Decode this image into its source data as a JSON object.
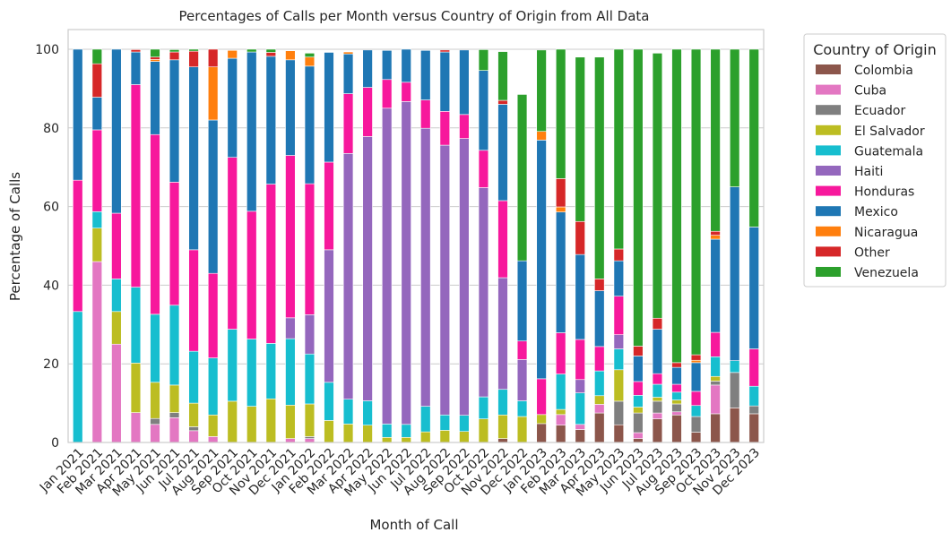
{
  "chart_data": {
    "type": "bar",
    "stacked": true,
    "title": "Percentages of Calls per Month versus Country of Origin from All Data",
    "xlabel": "Month of Call",
    "ylabel": "Percentage of Calls",
    "ylim": [
      0,
      105
    ],
    "yticks": [
      "0",
      "20",
      "40",
      "60",
      "80",
      "100"
    ],
    "grid": true,
    "legend_title": "Country of Origin",
    "legend_position": "outside-right",
    "categories": [
      "Jan 2021",
      "Feb 2021",
      "Mar 2021",
      "Apr 2021",
      "May 2021",
      "Jun 2021",
      "Jul 2021",
      "Aug 2021",
      "Sep 2021",
      "Oct 2021",
      "Nov 2021",
      "Dec 2021",
      "Jan 2022",
      "Feb 2022",
      "Mar 2022",
      "Apr 2022",
      "May 2022",
      "Jun 2022",
      "Jul 2022",
      "Aug 2022",
      "Sep 2022",
      "Oct 2022",
      "Nov 2022",
      "Dec 2022",
      "Jan 2023",
      "Feb 2023",
      "Mar 2023",
      "Apr 2023",
      "May 2023",
      "Jun 2023",
      "Jul 2023",
      "Aug 2023",
      "Sep 2023",
      "Oct 2023",
      "Nov 2023",
      "Dec 2023"
    ],
    "series": [
      {
        "name": "Colombia",
        "color": "#8c564b",
        "values": [
          0,
          0,
          0,
          0,
          0,
          0,
          0,
          0,
          0,
          0,
          0,
          0,
          0,
          0,
          0,
          0,
          0,
          0,
          0,
          0,
          0,
          0,
          1,
          0,
          4.8,
          4.4,
          3.3,
          7.5,
          4.5,
          1.0,
          6.0,
          7.0,
          2.6,
          7.3,
          8.8,
          7.3
        ]
      },
      {
        "name": "Cuba",
        "color": "#e377c2",
        "values": [
          0,
          46,
          25,
          7.6,
          4.6,
          6.3,
          3.0,
          1.5,
          0,
          0,
          0,
          1,
          1,
          0,
          0,
          0,
          0,
          0,
          0,
          0,
          0,
          0,
          0,
          0,
          0,
          2.7,
          1.3,
          2.2,
          0,
          1.5,
          1.5,
          0.8,
          0,
          7.3,
          0,
          0
        ]
      },
      {
        "name": "Ecuador",
        "color": "#7f7f7f",
        "values": [
          0,
          0,
          0,
          0,
          1.5,
          1.3,
          1.0,
          0,
          0,
          0,
          0,
          0,
          0.5,
          0,
          0,
          0,
          0,
          0,
          0,
          0,
          0,
          0,
          0,
          0,
          0,
          0,
          0,
          0,
          6.0,
          5.0,
          3.0,
          2.0,
          4.0,
          1.0,
          9.0,
          2.0
        ]
      },
      {
        "name": "El Salvador",
        "color": "#bcbd22",
        "values": [
          0,
          8.5,
          8.3,
          12.6,
          9.2,
          7.0,
          6.0,
          5.5,
          10.5,
          9.2,
          11.1,
          8.5,
          8.3,
          5.6,
          4.7,
          4.4,
          1.3,
          1.3,
          2.7,
          3.1,
          2.8,
          6,
          6,
          6.6,
          2.3,
          1.3,
          0,
          2.2,
          8.0,
          1.5,
          1.0,
          1.0,
          0,
          1.2,
          0,
          0
        ]
      },
      {
        "name": "Guatemala",
        "color": "#17becf",
        "values": [
          33.3,
          4.2,
          8.3,
          19.3,
          17.3,
          20.3,
          13.2,
          14.5,
          18.3,
          17.1,
          14.1,
          16.9,
          12.7,
          9.7,
          6.3,
          6.2,
          3.4,
          3.3,
          6.5,
          3.9,
          4.1,
          5.6,
          6.5,
          4,
          0,
          9.0,
          8.0,
          6.3,
          5.3,
          3.0,
          3.3,
          2.0,
          2.8,
          5.0,
          3.0,
          5.0
        ]
      },
      {
        "name": "Haiti",
        "color": "#9467bd",
        "values": [
          0,
          0,
          0,
          0,
          0,
          0,
          0,
          0,
          0,
          0,
          0,
          5.3,
          10.0,
          33.7,
          62.5,
          67.2,
          80.3,
          82.1,
          70.7,
          68.6,
          70.4,
          53.2,
          28.4,
          10.5,
          0,
          0,
          3.4,
          0,
          3.6,
          0,
          0,
          0,
          0,
          0,
          0,
          0
        ]
      },
      {
        "name": "Honduras",
        "color": "#f7189c",
        "values": [
          33.4,
          20.8,
          16.7,
          51.5,
          45.7,
          31.3,
          25.8,
          21.5,
          43.7,
          32.5,
          40.5,
          41.3,
          33.3,
          22.3,
          15.2,
          12.5,
          7.3,
          4.9,
          7.2,
          8.6,
          6.1,
          9.5,
          19.6,
          4.7,
          9.1,
          10.5,
          10.2,
          6.2,
          9.8,
          3.5,
          2.7,
          2.0,
          3.6,
          6.2,
          0,
          9.5
        ]
      },
      {
        "name": "Mexico",
        "color": "#1f77b4",
        "values": [
          33.3,
          8.3,
          41.7,
          8.3,
          18.6,
          31.1,
          46.5,
          39,
          25.2,
          40.5,
          32.5,
          24.3,
          29.9,
          27.9,
          10.1,
          9.5,
          7.4,
          8.4,
          12.6,
          15.1,
          16.4,
          20.3,
          24.5,
          20.4,
          60.7,
          30.7,
          21.6,
          14.2,
          9.0,
          6.5,
          11.3,
          4.3,
          7.3,
          23.7,
          44.2,
          31.0
        ]
      },
      {
        "name": "Nicaragua",
        "color": "#ff7f0e",
        "values": [
          0,
          0,
          0,
          0,
          0.5,
          0,
          0,
          13.5,
          2,
          0,
          0,
          2.3,
          2.3,
          0,
          0.5,
          0,
          0,
          0,
          0,
          0,
          0,
          0,
          0,
          0,
          2.2,
          1.3,
          0,
          0,
          0,
          0,
          0,
          0,
          0.6,
          1.0,
          0,
          0
        ]
      },
      {
        "name": "Other",
        "color": "#d62728",
        "values": [
          0,
          8.5,
          0,
          0.6,
          0.6,
          2.0,
          4.0,
          4.5,
          0,
          0,
          1.0,
          0,
          0,
          0,
          0,
          0,
          0,
          0,
          0,
          0.5,
          0,
          0,
          1.0,
          0,
          0,
          7.2,
          8.4,
          3.0,
          3.0,
          2.5,
          2.8,
          1.2,
          1.4,
          1.0,
          0,
          0
        ]
      },
      {
        "name": "Venezuela",
        "color": "#2ca02c",
        "values": [
          0,
          3.7,
          0,
          0,
          2.0,
          0.6,
          0.5,
          0,
          0,
          0.7,
          0.8,
          0,
          1.0,
          0,
          0,
          0,
          0,
          0,
          0,
          0,
          0,
          5.3,
          12.4,
          42.3,
          20.7,
          32.9,
          41.8,
          56.4,
          50.8,
          75.5,
          67.4,
          79.7,
          77.7,
          46.3,
          35.0,
          45.2
        ]
      }
    ]
  }
}
